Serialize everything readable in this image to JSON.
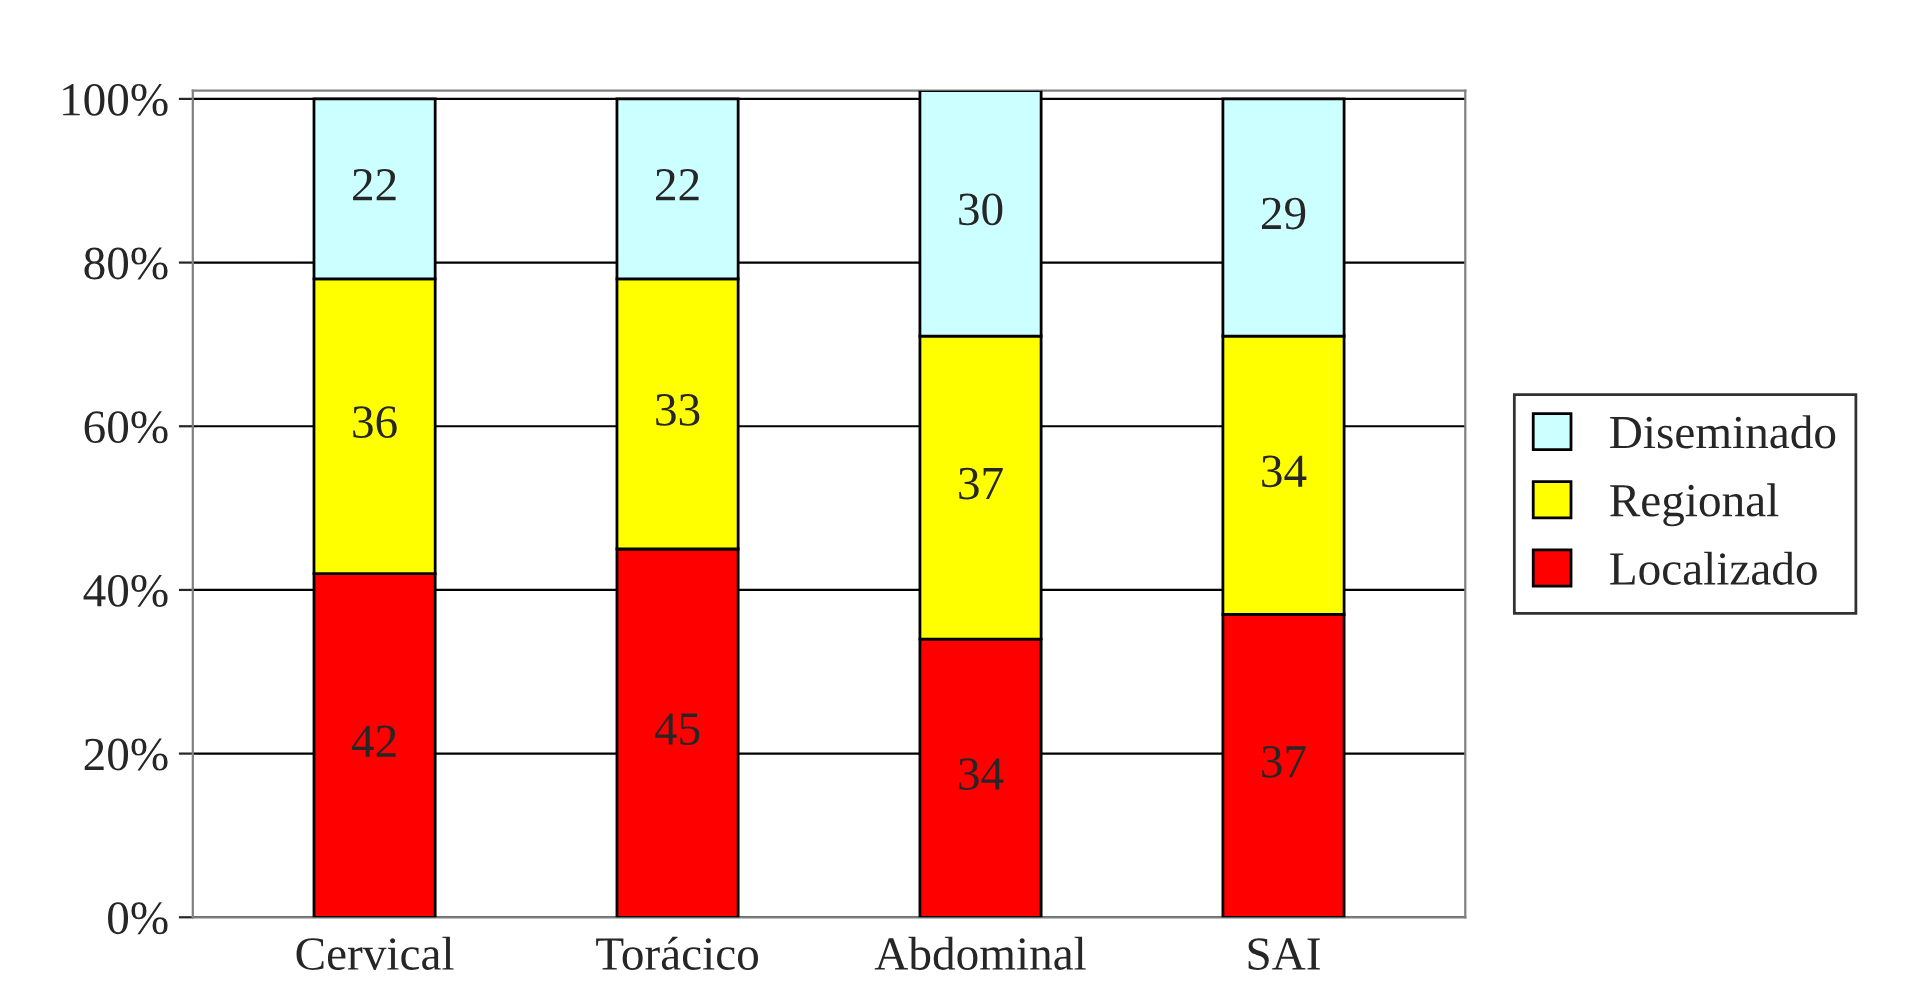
{
  "chart_data": {
    "type": "bar",
    "stacked": true,
    "categories": [
      "Cervical",
      "Torácico",
      "Abdominal",
      "SAI"
    ],
    "series": [
      {
        "name": "Localizado",
        "color": "#ff0000",
        "values": [
          42,
          45,
          34,
          37
        ]
      },
      {
        "name": "Regional",
        "color": "#ffff00",
        "values": [
          36,
          33,
          37,
          34
        ]
      },
      {
        "name": "Diseminado",
        "color": "#ccffff",
        "values": [
          22,
          22,
          30,
          29
        ]
      }
    ],
    "ylim": [
      0,
      101
    ],
    "yticks": [
      {
        "value": 0,
        "label": "0%"
      },
      {
        "value": 20,
        "label": "20%"
      },
      {
        "value": 40,
        "label": "40%"
      },
      {
        "value": 60,
        "label": "60%"
      },
      {
        "value": 80,
        "label": "80%"
      },
      {
        "value": 100,
        "label": "100%"
      }
    ],
    "grid": "y",
    "legend": "right",
    "data_labels": true
  }
}
